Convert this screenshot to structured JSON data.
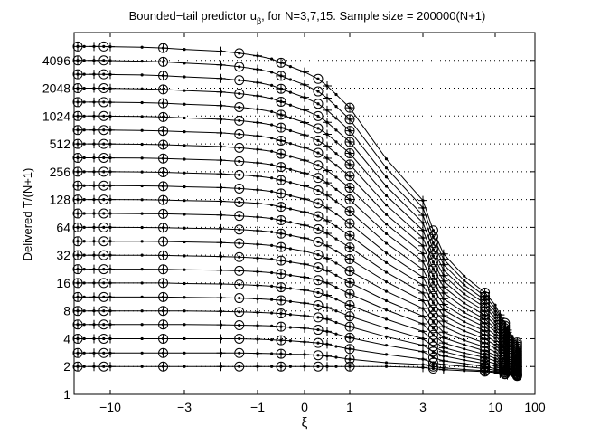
{
  "chart_data": {
    "type": "line",
    "title_main": "Bounded−tail predictor u",
    "title_sub": "β",
    "title_rest": ", for N=3,7,15. Sample size  = 200000(N+1)",
    "xlabel": "ξ",
    "ylabel": "Delivered T/(N+1)",
    "x_axis": {
      "tick_positions": [
        -10,
        -3,
        -1,
        0,
        1,
        3,
        10,
        100
      ],
      "tick_labels": [
        "−10",
        "−3",
        "−1",
        "0",
        "1",
        "3",
        "10",
        "100"
      ],
      "scale": "nonlinear (symmetric log)"
    },
    "y_axis": {
      "scale": "log2",
      "ylim": [
        1,
        8192
      ],
      "tick_values": [
        1,
        2,
        4,
        8,
        16,
        32,
        64,
        128,
        256,
        512,
        1024,
        2048,
        4096
      ],
      "tick_labels": [
        "1",
        "2",
        "4",
        "8",
        "16",
        "32",
        "64",
        "128",
        "256",
        "512",
        "1024",
        "2048",
        "4096"
      ]
    },
    "grid": "dotted horizontal lines at y ticks 2 to 4096",
    "x": [
      -20,
      -18,
      -15,
      -12,
      -10,
      -7,
      -5,
      -3,
      -2,
      -1.5,
      -1,
      -0.7,
      -0.5,
      -0.3,
      0,
      0.3,
      0.5,
      0.7,
      1,
      2,
      3,
      4,
      5,
      7,
      9,
      10,
      12,
      14,
      15,
      17,
      19,
      20
    ],
    "markers": {
      "circle": "N=15 (every 3rd x point)",
      "plus": "N=7 (every 2nd x point)",
      "dot": "N=3 (every x point)"
    },
    "series": [
      {
        "target": 2,
        "values": [
          2,
          2,
          2,
          2,
          2,
          2,
          2,
          2,
          2,
          2,
          2,
          2,
          2,
          2,
          2,
          2,
          2,
          2,
          2,
          2,
          1.95,
          1.9,
          1.85,
          1.8,
          1.76,
          1.72,
          1.68,
          1.65,
          1.62,
          1.6,
          1.58,
          1.56
        ]
      },
      {
        "target": 2.8,
        "values": [
          2.8,
          2.8,
          2.8,
          2.8,
          2.8,
          2.8,
          2.8,
          2.8,
          2.8,
          2.8,
          2.78,
          2.76,
          2.75,
          2.72,
          2.7,
          2.65,
          2.6,
          2.52,
          2.4,
          2.2,
          2.1,
          2,
          1.93,
          1.86,
          1.8,
          1.76,
          1.72,
          1.68,
          1.66,
          1.63,
          1.6,
          1.58
        ]
      },
      {
        "target": 4,
        "values": [
          4,
          4,
          4,
          4,
          4,
          4,
          4,
          4,
          4,
          4,
          3.95,
          3.9,
          3.85,
          3.8,
          3.7,
          3.6,
          3.5,
          3.3,
          3.1,
          2.7,
          2.4,
          2.2,
          2.1,
          2,
          1.9,
          1.82,
          1.78,
          1.73,
          1.7,
          1.67,
          1.63,
          1.6
        ]
      },
      {
        "target": 5.7,
        "values": [
          5.7,
          5.7,
          5.7,
          5.7,
          5.7,
          5.7,
          5.7,
          5.7,
          5.65,
          5.6,
          5.55,
          5.5,
          5.4,
          5.3,
          5.2,
          5,
          4.8,
          4.5,
          4.1,
          3.4,
          2.9,
          2.5,
          2.3,
          2.15,
          2,
          1.9,
          1.84,
          1.78,
          1.74,
          1.7,
          1.66,
          1.62
        ]
      },
      {
        "target": 8,
        "values": [
          8,
          8,
          8,
          8,
          8,
          8,
          8,
          8,
          7.9,
          7.8,
          7.7,
          7.6,
          7.5,
          7.3,
          7.1,
          6.8,
          6.5,
          6,
          5.4,
          4.2,
          3.4,
          2.9,
          2.6,
          2.35,
          2.15,
          2.02,
          1.94,
          1.86,
          1.8,
          1.75,
          1.7,
          1.65
        ]
      },
      {
        "target": 11.3,
        "values": [
          11.3,
          11.3,
          11.3,
          11.3,
          11.3,
          11.3,
          11.3,
          11.2,
          11.1,
          11,
          10.8,
          10.6,
          10.4,
          10.1,
          9.7,
          9.2,
          8.7,
          8,
          7,
          5.2,
          4,
          3.3,
          2.9,
          2.55,
          2.3,
          2.15,
          2.04,
          1.95,
          1.88,
          1.82,
          1.76,
          1.7
        ]
      },
      {
        "target": 16,
        "values": [
          16,
          16,
          16,
          16,
          16,
          16,
          16,
          15.8,
          15.6,
          15.4,
          15.1,
          14.8,
          14.4,
          14,
          13.4,
          12.6,
          11.8,
          10.7,
          9.2,
          6.5,
          4.8,
          3.8,
          3.2,
          2.8,
          2.5,
          2.3,
          2.15,
          2.05,
          1.96,
          1.88,
          1.82,
          1.75
        ]
      },
      {
        "target": 22.6,
        "values": [
          22.6,
          22.6,
          22.6,
          22.6,
          22.6,
          22.6,
          22.5,
          22.3,
          22,
          21.7,
          21.2,
          20.7,
          20.1,
          19.4,
          18.5,
          17.2,
          16,
          14.4,
          12.2,
          8.2,
          5.8,
          4.4,
          3.6,
          3.1,
          2.7,
          2.45,
          2.28,
          2.15,
          2.05,
          1.96,
          1.88,
          1.8
        ]
      },
      {
        "target": 32,
        "values": [
          32,
          32,
          32,
          32,
          32,
          32,
          31.8,
          31.5,
          31,
          30.5,
          29.8,
          29,
          28,
          27,
          25.6,
          23.6,
          21.8,
          19.4,
          16.2,
          10.3,
          7,
          5.2,
          4.1,
          3.45,
          2.95,
          2.65,
          2.42,
          2.27,
          2.15,
          2.05,
          1.95,
          1.86
        ]
      },
      {
        "target": 45.3,
        "values": [
          45.3,
          45.3,
          45.3,
          45.3,
          45.3,
          45.2,
          45,
          44.5,
          43.8,
          43,
          42,
          40.8,
          39.2,
          37.6,
          35.4,
          32.4,
          29.6,
          26.2,
          21.6,
          13,
          8.5,
          6.1,
          4.7,
          3.85,
          3.25,
          2.88,
          2.6,
          2.4,
          2.26,
          2.14,
          2.02,
          1.92
        ]
      },
      {
        "target": 64,
        "values": [
          64,
          64,
          64,
          64,
          64,
          63.8,
          63.5,
          62.8,
          61.8,
          60.6,
          59,
          57.2,
          54.8,
          52.4,
          49,
          44.6,
          40.4,
          35.5,
          29,
          16.5,
          10.3,
          7.1,
          5.4,
          4.3,
          3.6,
          3.15,
          2.82,
          2.56,
          2.38,
          2.24,
          2.1,
          1.98
        ]
      },
      {
        "target": 90.5,
        "values": [
          90.5,
          90.5,
          90.5,
          90.5,
          90.5,
          90.2,
          89.7,
          88.6,
          87,
          85.2,
          82.8,
          80,
          76.4,
          72.8,
          67.6,
          61.2,
          55.2,
          48,
          38.8,
          20.9,
          12.5,
          8.3,
          6.2,
          4.85,
          3.98,
          3.42,
          3.02,
          2.72,
          2.5,
          2.33,
          2.18,
          2.04
        ]
      },
      {
        "target": 128,
        "values": [
          128,
          128,
          128,
          128,
          128,
          127.5,
          126.7,
          125,
          122.6,
          120,
          116.4,
          112.2,
          106.8,
          101.4,
          93.8,
          84.6,
          75.8,
          65.6,
          52.4,
          26.6,
          15.2,
          9.8,
          7.1,
          5.45,
          4.4,
          3.72,
          3.24,
          2.9,
          2.64,
          2.44,
          2.26,
          2.1
        ]
      },
      {
        "target": 181,
        "values": [
          181,
          181,
          181,
          181,
          181,
          180,
          178.6,
          176,
          172.4,
          168.4,
          163,
          156.8,
          148.8,
          140.8,
          129.8,
          116.4,
          103.8,
          89.4,
          70.6,
          33.8,
          18.5,
          11.6,
          8.2,
          6.1,
          4.85,
          4.04,
          3.48,
          3.08,
          2.78,
          2.55,
          2.34,
          2.16
        ]
      },
      {
        "target": 256,
        "values": [
          256,
          256,
          256,
          256,
          256,
          254.5,
          252.4,
          248.4,
          242.8,
          236.6,
          228.6,
          219.4,
          207.6,
          195.8,
          180,
          160.6,
          142.6,
          122,
          95.4,
          43,
          22.5,
          13.7,
          9.4,
          6.85,
          5.35,
          4.4,
          3.74,
          3.27,
          2.93,
          2.66,
          2.43,
          2.22
        ]
      },
      {
        "target": 362,
        "values": [
          362,
          362,
          362,
          362,
          361,
          359,
          355.8,
          349.6,
          341,
          331.6,
          319.4,
          305.4,
          288,
          270.6,
          247.4,
          219.6,
          194,
          165,
          128.2,
          54.6,
          27.4,
          16.2,
          10.8,
          7.7,
          5.9,
          4.8,
          4.04,
          3.5,
          3.1,
          2.79,
          2.53,
          2.29
        ]
      },
      {
        "target": 512,
        "values": [
          512,
          512,
          512,
          512,
          511,
          507,
          502,
          492.4,
          479.2,
          465,
          446.4,
          425.4,
          399.6,
          374,
          340,
          300.2,
          263.6,
          222.8,
          171.8,
          69.4,
          33.3,
          19.2,
          12.5,
          8.65,
          6.5,
          5.2,
          4.35,
          3.73,
          3.28,
          2.93,
          2.63,
          2.36
        ]
      },
      {
        "target": 724,
        "values": [
          724,
          724,
          724,
          724,
          722,
          716,
          708,
          693,
          673,
          651.6,
          623.8,
          592.6,
          554.4,
          516.8,
          467.2,
          409.6,
          357.4,
          300.4,
          230,
          88,
          40.5,
          22.7,
          14.5,
          9.7,
          7.2,
          5.65,
          4.68,
          3.98,
          3.47,
          3.08,
          2.74,
          2.44
        ]
      },
      {
        "target": 1024,
        "values": [
          1024,
          1024,
          1024,
          1024,
          1021,
          1012,
          999,
          976,
          945,
          912.6,
          870.4,
          823.4,
          766.6,
          711,
          639,
          556.6,
          482.8,
          403.2,
          306.6,
          111.6,
          49.2,
          26.8,
          16.8,
          10.9,
          7.95,
          6.15,
          5.04,
          4.25,
          3.68,
          3.24,
          2.86,
          2.52
        ]
      },
      {
        "target": 1448,
        "values": [
          1448,
          1448,
          1448,
          1448,
          1443,
          1429,
          1409,
          1374,
          1327,
          1278,
          1214,
          1143,
          1058,
          976,
          872,
          754,
          650,
          539,
          405,
          141,
          59.5,
          31.5,
          19.3,
          12.2,
          8.75,
          6.7,
          5.42,
          4.54,
          3.91,
          3.42,
          3,
          2.61
        ]
      },
      {
        "target": 2048,
        "values": [
          2048,
          2048,
          2048,
          2048,
          2040,
          2018,
          1987,
          1934,
          1864,
          1789,
          1693,
          1587,
          1462,
          1343,
          1192,
          1023,
          876,
          722,
          536,
          178,
          71.8,
          37,
          22.1,
          13.6,
          9.6,
          7.28,
          5.84,
          4.86,
          4.16,
          3.62,
          3.15,
          2.71
        ]
      },
      {
        "target": 2896,
        "values": [
          2896,
          2896,
          2896,
          2896,
          2883,
          2848,
          2800,
          2719,
          2613,
          2500,
          2357,
          2200,
          2018,
          1846,
          1630,
          1390,
          1183,
          968,
          709,
          224,
          86.5,
          43.4,
          25.3,
          15.2,
          10.5,
          7.9,
          6.28,
          5.19,
          4.42,
          3.83,
          3.31,
          2.82
        ]
      },
      {
        "target": 4096,
        "values": [
          4096,
          4096,
          4096,
          4096,
          4075,
          4020,
          3947,
          3823,
          3664,
          3495,
          3284,
          3053,
          2788,
          2540,
          2232,
          1892,
          1601,
          1302,
          945,
          281,
          104,
          50.8,
          28.9,
          17,
          11.5,
          8.55,
          6.75,
          5.54,
          4.69,
          4.04,
          3.47,
          2.94
        ]
      },
      {
        "target": 5793,
        "values": [
          5793,
          5793,
          5793,
          5793,
          5760,
          5677,
          5567,
          5382,
          5147,
          4898,
          4587,
          4250,
          3866,
          3508,
          3065,
          2581,
          2170,
          1752,
          1259,
          352,
          125,
          59.4,
          33,
          19,
          12.6,
          9.25,
          7.24,
          5.91,
          4.97,
          4.26,
          3.64,
          3.06
        ]
      }
    ]
  }
}
